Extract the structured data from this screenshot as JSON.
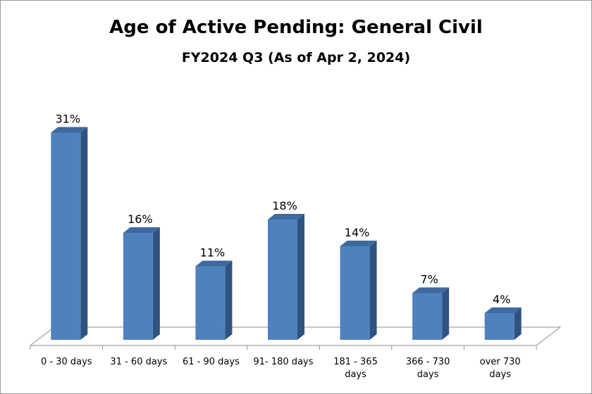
{
  "chart_data": {
    "type": "bar",
    "title": "Age of Active Pending: General Civil",
    "subtitle": "FY2024 Q3 (As of Apr 2, 2024)",
    "categories": [
      "0 - 30 days",
      "31 - 60 days",
      "61 - 90 days",
      "91- 180 days",
      "181 - 365 days",
      "366 - 730 days",
      "over 730 days"
    ],
    "category_lines": [
      [
        "0 - 30 days"
      ],
      [
        "31 - 60 days"
      ],
      [
        "61 - 90 days"
      ],
      [
        "91- 180 days"
      ],
      [
        "181 - 365",
        "days"
      ],
      [
        "366 - 730",
        "days"
      ],
      [
        "over 730",
        "days"
      ]
    ],
    "values": [
      31,
      16,
      11,
      18,
      14,
      7,
      4
    ],
    "data_labels": [
      "31%",
      "16%",
      "11%",
      "18%",
      "14%",
      "7%",
      "4%"
    ],
    "unit": "%",
    "ylim": [
      0,
      35
    ],
    "grid": false,
    "legend": "none",
    "bar_style": "3d",
    "colors": {
      "bar_front": "#4F81BD",
      "bar_side": "#2F5380",
      "bar_top": "#3F6AA0",
      "axis": "#8c8c8c"
    }
  }
}
